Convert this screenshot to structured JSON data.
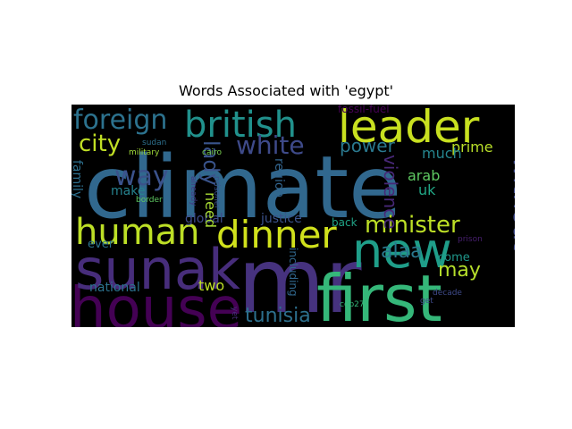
{
  "chart_data": {
    "type": "wordcloud",
    "title": "Words Associated with 'egypt'",
    "background": "#000000",
    "words": [
      {
        "text": "climate",
        "color": "#31688e"
      },
      {
        "text": "mr",
        "color": "#46327e"
      },
      {
        "text": "first",
        "color": "#35b779"
      },
      {
        "text": "house",
        "color": "#440154"
      },
      {
        "text": "sunak",
        "color": "#472d7b"
      },
      {
        "text": "leader",
        "color": "#c8e020"
      },
      {
        "text": "new",
        "color": "#1f9e89"
      },
      {
        "text": "british",
        "color": "#21918c"
      },
      {
        "text": "dinner",
        "color": "#d0e11c"
      },
      {
        "text": "human",
        "color": "#bddf26"
      },
      {
        "text": "foreign",
        "color": "#2c728e"
      },
      {
        "text": "white",
        "color": "#3e4a89"
      },
      {
        "text": "minister",
        "color": "#bddf26"
      },
      {
        "text": "city",
        "color": "#c0df25"
      },
      {
        "text": "way",
        "color": "#3b528b"
      },
      {
        "text": "without",
        "color": "#3e4989"
      },
      {
        "text": "lady",
        "color": "#3a548c"
      },
      {
        "text": "power",
        "color": "#2a788e"
      },
      {
        "text": "tunisia",
        "color": "#2d708e"
      },
      {
        "text": "may",
        "color": "#b5de2b"
      },
      {
        "text": "alaa",
        "color": "#2a788e"
      },
      {
        "text": "region",
        "color": "#32658e"
      },
      {
        "text": "violence",
        "color": "#482878"
      },
      {
        "text": "prime",
        "color": "#b8de29"
      },
      {
        "text": "much",
        "color": "#25858e"
      },
      {
        "text": "arab",
        "color": "#5ec962"
      },
      {
        "text": "uk",
        "color": "#21a685"
      },
      {
        "text": "justice",
        "color": "#3b528b"
      },
      {
        "text": "global",
        "color": "#3e4a89"
      },
      {
        "text": "national",
        "color": "#2c728e"
      },
      {
        "text": "two",
        "color": "#bddf26"
      },
      {
        "text": "need",
        "color": "#a8db34"
      },
      {
        "text": "make",
        "color": "#26828e"
      },
      {
        "text": "family",
        "color": "#2d708e"
      },
      {
        "text": "come",
        "color": "#1f988b"
      },
      {
        "text": "fossil-fuel",
        "color": "#440154"
      },
      {
        "text": "back",
        "color": "#20a386"
      },
      {
        "text": "ever",
        "color": "#2c728e"
      },
      {
        "text": "including",
        "color": "#31688e"
      },
      {
        "text": "military",
        "color": "#a0da39"
      },
      {
        "text": "cairo",
        "color": "#7ad151"
      },
      {
        "text": "sudan",
        "color": "#2d708e"
      },
      {
        "text": "border",
        "color": "#5ec962"
      },
      {
        "text": "already",
        "color": "#443a83"
      },
      {
        "text": "prisoner",
        "color": "#3b528b"
      },
      {
        "text": "cop27",
        "color": "#35b779"
      },
      {
        "text": "yet",
        "color": "#472d7b"
      },
      {
        "text": "prison",
        "color": "#481f70"
      },
      {
        "text": "get",
        "color": "#3e4a89"
      },
      {
        "text": "decade",
        "color": "#3e4a89"
      }
    ]
  }
}
